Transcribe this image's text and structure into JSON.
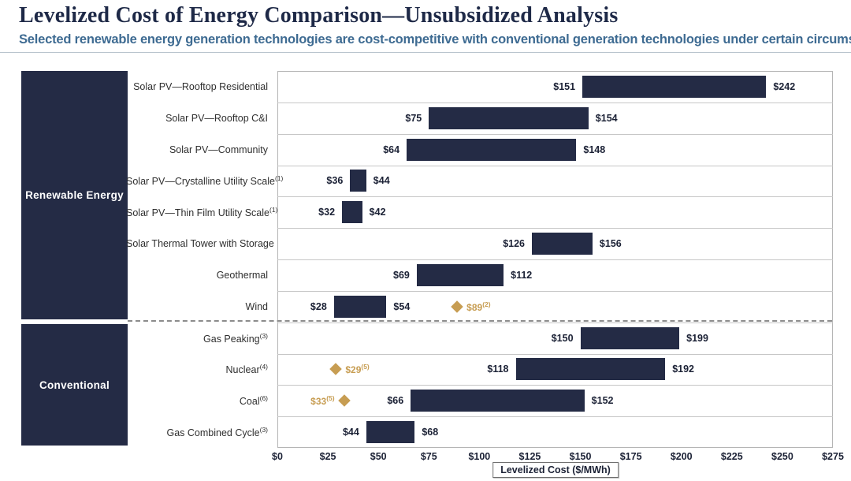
{
  "header": {
    "title": "Levelized Cost of Energy Comparison—Unsubsidized Analysis",
    "subtitle": "Selected renewable energy generation technologies are cost-competitive with conventional generation technologies under certain circumstances"
  },
  "sidebar": {
    "renewable_label": "Renewable Energy",
    "conventional_label": "Conventional"
  },
  "axis": {
    "label": "Levelized Cost ($/MWh)",
    "min": 0,
    "max": 275,
    "tick_step": 25,
    "ticks": [
      "$0",
      "$25",
      "$50",
      "$75",
      "$100",
      "$125",
      "$150",
      "$175",
      "$200",
      "$225",
      "$250",
      "$275"
    ]
  },
  "colors": {
    "bar_navy": "#242b45",
    "diamond_gold": "#c79d52",
    "subtitle_blue": "#3e6b92",
    "title_navy": "#1e2947"
  },
  "chart_data": {
    "type": "bar",
    "subtype": "horizontal-range-bars",
    "title": "Levelized Cost of Energy Comparison—Unsubsidized Analysis",
    "xlabel": "Levelized Cost ($/MWh)",
    "xlim": [
      0,
      275
    ],
    "grid": "row-separators",
    "sections": [
      {
        "name": "Renewable Energy",
        "row_count": 8
      },
      {
        "name": "Conventional",
        "row_count": 4
      }
    ],
    "rows": [
      {
        "label": "Solar PV—Rooftop Residential",
        "sup": "",
        "min": 151,
        "max": 242,
        "min_label": "$151",
        "max_label": "$242",
        "section": "renewable"
      },
      {
        "label": "Solar PV—Rooftop C&I",
        "sup": "",
        "min": 75,
        "max": 154,
        "min_label": "$75",
        "max_label": "$154",
        "section": "renewable"
      },
      {
        "label": "Solar PV—Community",
        "sup": "",
        "min": 64,
        "max": 148,
        "min_label": "$64",
        "max_label": "$148",
        "section": "renewable"
      },
      {
        "label": "Solar PV—Crystalline Utility Scale",
        "sup": "(1)",
        "min": 36,
        "max": 44,
        "min_label": "$36",
        "max_label": "$44",
        "section": "renewable"
      },
      {
        "label": "Solar PV—Thin Film Utility Scale",
        "sup": "(1)",
        "min": 32,
        "max": 42,
        "min_label": "$32",
        "max_label": "$42",
        "section": "renewable"
      },
      {
        "label": "Solar Thermal Tower with Storage",
        "sup": "",
        "min": 126,
        "max": 156,
        "min_label": "$126",
        "max_label": "$156",
        "section": "renewable"
      },
      {
        "label": "Geothermal",
        "sup": "",
        "min": 69,
        "max": 112,
        "min_label": "$69",
        "max_label": "$112",
        "section": "renewable"
      },
      {
        "label": "Wind",
        "sup": "",
        "min": 28,
        "max": 54,
        "min_label": "$28",
        "max_label": "$54",
        "section": "renewable",
        "diamond": {
          "value": 89,
          "label": "$89",
          "sup": "(2)",
          "side": "right"
        }
      },
      {
        "label": "Gas Peaking",
        "sup": "(3)",
        "min": 150,
        "max": 199,
        "min_label": "$150",
        "max_label": "$199",
        "section": "conventional"
      },
      {
        "label": "Nuclear",
        "sup": "(4)",
        "min": 118,
        "max": 192,
        "min_label": "$118",
        "max_label": "$192",
        "section": "conventional",
        "diamond": {
          "value": 29,
          "label": "$29",
          "sup": "(5)",
          "side": "right"
        }
      },
      {
        "label": "Coal",
        "sup": "(6)",
        "min": 66,
        "max": 152,
        "min_label": "$66",
        "max_label": "$152",
        "section": "conventional",
        "diamond": {
          "value": 33,
          "label": "$33",
          "sup": "(5)",
          "side": "left"
        }
      },
      {
        "label": "Gas Combined Cycle",
        "sup": "(3)",
        "min": 44,
        "max": 68,
        "min_label": "$44",
        "max_label": "$68",
        "section": "conventional"
      }
    ]
  }
}
